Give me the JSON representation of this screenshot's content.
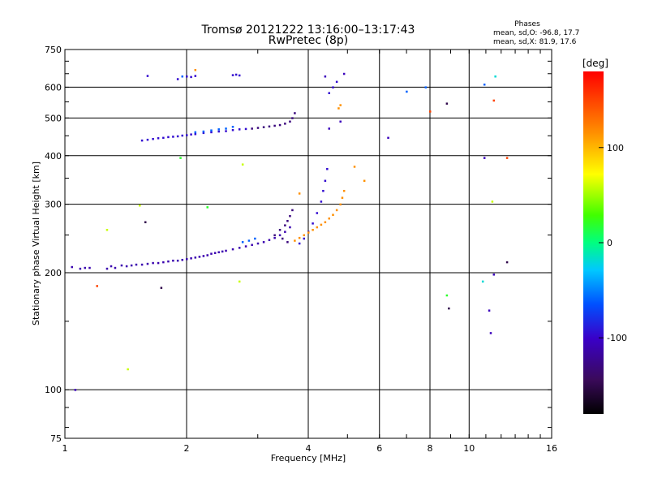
{
  "header": {
    "title": "Tromsø 20121222 13:16:00–13:17:43",
    "subtitle": "RwPretec (8p)",
    "phases_title": "Phases",
    "phases_o": "mean, sd,O:  -96.8, 17.7",
    "phases_x": "mean, sd,X:   81.9, 17.6"
  },
  "colorbar": {
    "label": "[deg]",
    "min": -180,
    "max": 180,
    "ticks": [
      {
        "value": 100,
        "label": "100"
      },
      {
        "value": 0,
        "label": "0"
      },
      {
        "value": -100,
        "label": "-100"
      }
    ]
  },
  "chart_data": {
    "type": "scatter",
    "xlabel": "Frequency [MHz]",
    "ylabel": "Stationary phase Virtual Height [km]",
    "x_scale": "log",
    "y_scale": "log",
    "xlim": [
      1,
      16
    ],
    "ylim": [
      75,
      750
    ],
    "grid": true,
    "xticks": [
      {
        "value": 1,
        "label": "1"
      },
      {
        "value": 2,
        "label": "2"
      },
      {
        "value": 4,
        "label": "4"
      },
      {
        "value": 6,
        "label": "6"
      },
      {
        "value": 8,
        "label": "8"
      },
      {
        "value": 10,
        "label": "10"
      },
      {
        "value": 16,
        "label": "16"
      }
    ],
    "yticks": [
      {
        "value": 75,
        "label": "75"
      },
      {
        "value": 100,
        "label": "100"
      },
      {
        "value": 200,
        "label": "200"
      },
      {
        "value": 300,
        "label": "300"
      },
      {
        "value": 400,
        "label": "400"
      },
      {
        "value": 500,
        "label": "500"
      },
      {
        "value": 600,
        "label": "600"
      },
      {
        "value": 750,
        "label": "750"
      }
    ],
    "series": [
      {
        "color_value": -110,
        "points": [
          [
            1.04,
            207
          ],
          [
            1.09,
            205
          ],
          [
            1.12,
            206
          ],
          [
            1.15,
            206
          ],
          [
            1.27,
            205
          ],
          [
            1.3,
            208
          ],
          [
            1.33,
            206
          ],
          [
            1.38,
            209
          ],
          [
            1.42,
            208
          ],
          [
            1.46,
            209
          ],
          [
            1.5,
            210
          ],
          [
            1.55,
            210
          ],
          [
            1.6,
            211
          ],
          [
            1.65,
            212
          ],
          [
            1.7,
            212
          ],
          [
            1.75,
            213
          ],
          [
            1.8,
            214
          ],
          [
            1.85,
            215
          ],
          [
            1.9,
            215
          ],
          [
            1.95,
            216
          ],
          [
            2.0,
            217
          ],
          [
            2.05,
            218
          ],
          [
            2.1,
            219
          ],
          [
            2.15,
            220
          ],
          [
            2.2,
            221
          ],
          [
            2.25,
            222
          ],
          [
            2.3,
            224
          ],
          [
            2.35,
            225
          ],
          [
            2.4,
            226
          ],
          [
            2.45,
            227
          ],
          [
            2.5,
            228
          ],
          [
            2.6,
            230
          ],
          [
            2.7,
            232
          ],
          [
            2.8,
            234
          ],
          [
            2.9,
            236
          ],
          [
            3.0,
            238
          ],
          [
            3.1,
            240
          ],
          [
            3.2,
            243
          ],
          [
            3.3,
            246
          ],
          [
            3.4,
            250
          ],
          [
            3.5,
            255
          ],
          [
            3.6,
            262
          ]
        ]
      },
      {
        "color_value": -95,
        "points": [
          [
            1.55,
            438
          ],
          [
            1.6,
            440
          ],
          [
            1.65,
            442
          ],
          [
            1.7,
            444
          ],
          [
            1.75,
            445
          ],
          [
            1.8,
            447
          ],
          [
            1.85,
            448
          ],
          [
            1.9,
            449
          ],
          [
            1.95,
            451
          ],
          [
            2.0,
            452
          ],
          [
            2.05,
            454
          ],
          [
            2.1,
            455
          ],
          [
            2.2,
            458
          ],
          [
            2.3,
            460
          ],
          [
            2.4,
            462
          ],
          [
            2.5,
            463
          ],
          [
            2.6,
            466
          ],
          [
            2.7,
            468
          ],
          [
            2.8,
            469
          ],
          [
            2.6,
            645
          ],
          [
            2.65,
            647
          ],
          [
            2.7,
            644
          ],
          [
            2.0,
            640
          ],
          [
            2.05,
            638
          ],
          [
            2.1,
            642
          ],
          [
            1.9,
            630
          ],
          [
            1.6,
            642
          ],
          [
            3.8,
            238
          ],
          [
            3.9,
            245
          ],
          [
            4.0,
            255
          ],
          [
            4.1,
            268
          ],
          [
            4.2,
            285
          ],
          [
            4.3,
            305
          ],
          [
            4.35,
            325
          ],
          [
            4.4,
            345
          ],
          [
            4.45,
            370
          ],
          [
            4.5,
            580
          ],
          [
            4.6,
            600
          ],
          [
            4.7,
            620
          ]
        ]
      },
      {
        "color_value": -130,
        "points": [
          [
            2.9,
            470
          ],
          [
            3.0,
            472
          ],
          [
            3.1,
            474
          ],
          [
            3.2,
            476
          ],
          [
            3.3,
            478
          ],
          [
            3.4,
            480
          ],
          [
            3.5,
            484
          ],
          [
            3.6,
            490
          ],
          [
            3.65,
            500
          ],
          [
            3.7,
            515
          ],
          [
            3.3,
            250
          ],
          [
            3.4,
            258
          ],
          [
            3.5,
            265
          ],
          [
            3.55,
            272
          ],
          [
            3.6,
            280
          ],
          [
            3.65,
            290
          ],
          [
            3.55,
            240
          ],
          [
            3.45,
            245
          ]
        ]
      },
      {
        "color_value": 115,
        "points": [
          [
            3.7,
            242
          ],
          [
            3.8,
            246
          ],
          [
            3.9,
            250
          ],
          [
            4.0,
            254
          ],
          [
            4.1,
            258
          ],
          [
            4.2,
            262
          ],
          [
            4.3,
            266
          ],
          [
            4.4,
            270
          ],
          [
            4.5,
            276
          ],
          [
            4.6,
            282
          ],
          [
            4.7,
            290
          ],
          [
            4.8,
            300
          ],
          [
            4.85,
            312
          ],
          [
            4.9,
            325
          ],
          [
            4.75,
            530
          ],
          [
            4.8,
            540
          ],
          [
            5.2,
            375
          ],
          [
            5.5,
            345
          ],
          [
            3.8,
            320
          ],
          [
            2.1,
            665
          ]
        ]
      },
      {
        "color_value": -60,
        "points": [
          [
            2.1,
            460
          ],
          [
            2.2,
            462
          ],
          [
            2.3,
            465
          ],
          [
            2.4,
            468
          ],
          [
            2.5,
            470
          ],
          [
            2.6,
            475
          ],
          [
            2.75,
            240
          ],
          [
            2.85,
            242
          ],
          [
            2.95,
            245
          ],
          [
            7.8,
            600
          ],
          [
            1.95,
            640
          ],
          [
            7.0,
            585
          ],
          [
            10.9,
            610
          ]
        ]
      },
      {
        "color_value": 150,
        "points": [
          [
            1.2,
            185
          ],
          [
            8.0,
            520
          ],
          [
            11.5,
            555
          ],
          [
            12.4,
            395
          ]
        ]
      },
      {
        "color_value": 60,
        "points": [
          [
            1.43,
            113
          ],
          [
            2.7,
            190
          ],
          [
            2.75,
            380
          ],
          [
            1.53,
            298
          ],
          [
            1.27,
            258
          ],
          [
            11.4,
            305
          ]
        ]
      },
      {
        "color_value": 20,
        "points": [
          [
            8.8,
            175
          ],
          [
            2.25,
            295
          ],
          [
            1.93,
            395
          ]
        ]
      },
      {
        "color_value": -20,
        "points": [
          [
            10.8,
            190
          ],
          [
            11.6,
            640
          ]
        ]
      },
      {
        "color_value": -150,
        "points": [
          [
            1.73,
            183
          ],
          [
            8.9,
            162
          ],
          [
            8.8,
            545
          ],
          [
            12.4,
            213
          ],
          [
            1.58,
            270
          ]
        ]
      },
      {
        "color_value": -105,
        "points": [
          [
            1.06,
            100
          ],
          [
            11.2,
            160
          ],
          [
            11.3,
            140
          ],
          [
            11.5,
            198
          ],
          [
            6.3,
            445
          ],
          [
            4.5,
            470
          ],
          [
            4.8,
            490
          ],
          [
            4.9,
            650
          ],
          [
            4.4,
            640
          ],
          [
            10.9,
            395
          ]
        ]
      }
    ]
  }
}
